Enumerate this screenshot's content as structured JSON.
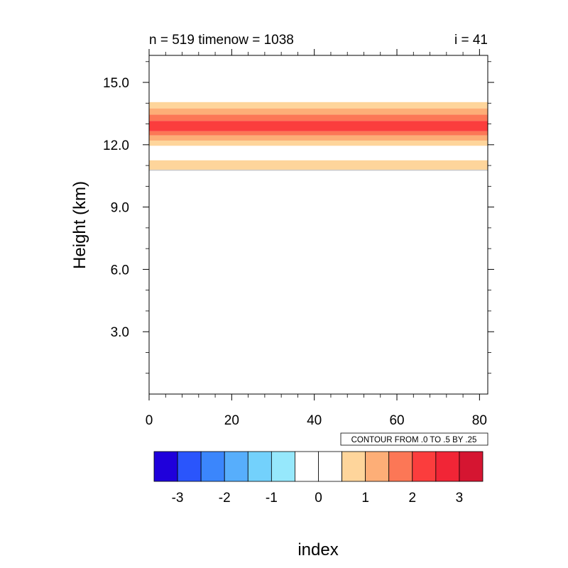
{
  "chart_data": {
    "type": "heatmap",
    "title_left": "n = 519 timenow = 1038",
    "title_right": "i = 41",
    "xlabel": "",
    "ylabel": "Height (km)",
    "xlim": [
      0,
      82
    ],
    "ylim": [
      0,
      16.3
    ],
    "x_ticks": [
      "0",
      "20",
      "40",
      "60",
      "80"
    ],
    "y_ticks": [
      "3.0",
      "6.0",
      "9.0",
      "12.0",
      "15.0"
    ],
    "contour_info": "CONTOUR FROM .0 TO .5 BY .25",
    "bands": [
      {
        "y0": 10.75,
        "y1": 10.8,
        "color": "#c8c8c8"
      },
      {
        "y0": 10.8,
        "y1": 11.25,
        "color": "#fed59b"
      },
      {
        "y0": 11.95,
        "y1": 12.2,
        "color": "#fed59b"
      },
      {
        "y0": 12.2,
        "y1": 12.45,
        "color": "#fdae77"
      },
      {
        "y0": 12.45,
        "y1": 12.65,
        "color": "#fc7756"
      },
      {
        "y0": 12.65,
        "y1": 13.15,
        "color": "#fb3d3d"
      },
      {
        "y0": 13.15,
        "y1": 13.45,
        "color": "#fc7756"
      },
      {
        "y0": 13.45,
        "y1": 13.75,
        "color": "#fdae77"
      },
      {
        "y0": 13.75,
        "y1": 14.05,
        "color": "#fed59b"
      }
    ],
    "colorbar": {
      "colors": [
        "#1f00db",
        "#2a55fc",
        "#3b86fc",
        "#57aefc",
        "#73d1fc",
        "#96e8fc",
        "#ffffff",
        "#ffffff",
        "#fed59b",
        "#fdae77",
        "#fc7756",
        "#fb3d3d",
        "#f12536",
        "#d51531"
      ],
      "labels": [
        "-3",
        "-2",
        "-1",
        "0",
        "1",
        "2",
        "3"
      ],
      "title": "index"
    }
  }
}
